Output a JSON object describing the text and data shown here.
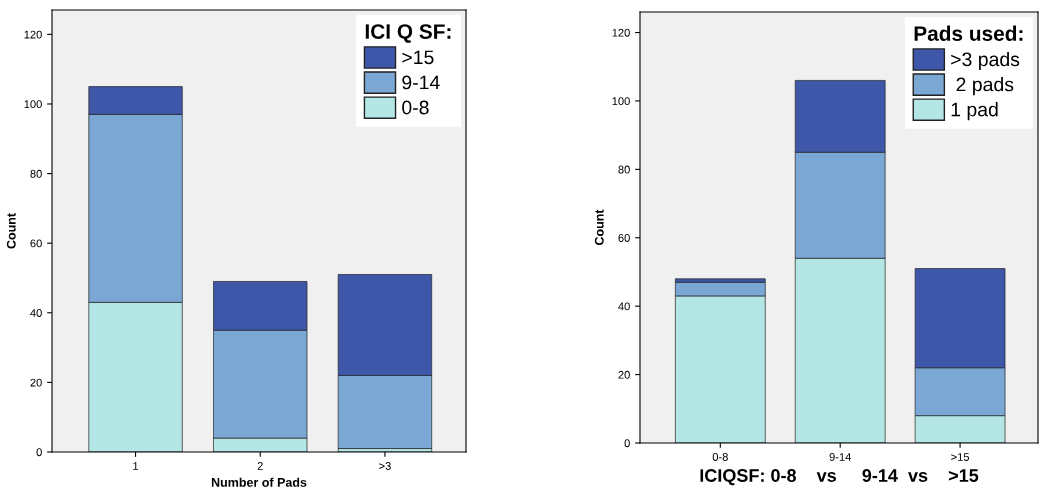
{
  "chart_data": [
    {
      "type": "bar",
      "stacked": true,
      "categories": [
        "1",
        "2",
        ">3"
      ],
      "xlabel": "Number of Pads",
      "ylabel": "Count",
      "legend_title": "ICI Q SF:",
      "legend": "top right",
      "ylim": [
        0,
        127
      ],
      "yticks": [
        0,
        20,
        40,
        60,
        80,
        100,
        120
      ],
      "grid": false,
      "series": [
        {
          "name": "0-8",
          "color": "#b4e6e6",
          "values": [
            43,
            4,
            1
          ]
        },
        {
          "name": "9-14",
          "color": "#7ba7d5",
          "values": [
            54,
            31,
            21
          ]
        },
        {
          "name": ">15",
          "color": "#3f57a9",
          "values": [
            8,
            14,
            29
          ]
        }
      ]
    },
    {
      "type": "bar",
      "stacked": true,
      "categories": [
        "0-8",
        "9-14",
        ">15"
      ],
      "xlabel": "ICIQSF: 0-8    vs     9-14  vs    >15",
      "ylabel": "Count",
      "legend_title": "Pads used:",
      "legend": "top right",
      "ylim": [
        0,
        126
      ],
      "yticks": [
        0,
        20,
        40,
        60,
        80,
        100,
        120
      ],
      "grid": false,
      "series": [
        {
          "name": "1 pad",
          "color": "#b4e6e6",
          "values": [
            43,
            54,
            8
          ]
        },
        {
          "name": " 2 pads",
          "color": "#7ba7d5",
          "values": [
            4,
            31,
            14
          ]
        },
        {
          "name": ">3 pads",
          "color": "#3f57a9",
          "values": [
            1,
            21,
            29
          ]
        }
      ]
    }
  ]
}
